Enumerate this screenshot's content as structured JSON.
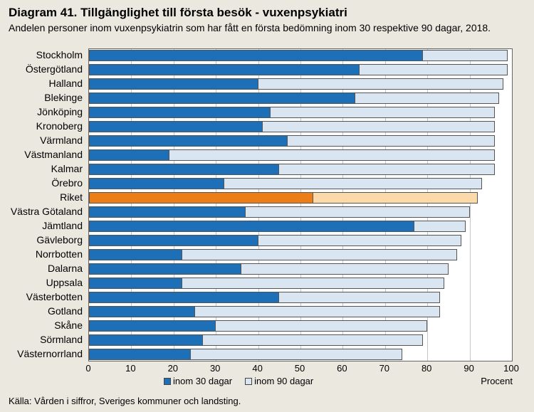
{
  "title": "Diagram 41. Tillgänglighet till första besök - vuxenpsykiatri",
  "subtitle": "Andelen personer inom vuxenpsykiatrin som har fått en första bedömning inom 30 respektive 90 dagar, 2018.",
  "source": "Källa: Vården i siffror, Sveriges kommuner och landsting.",
  "chart": {
    "type": "bar-horizontal-grouped-overlay",
    "background_color": "#ffffff",
    "page_background": "#ebe8df",
    "grid_color": "#c6c6c6",
    "border_color": "#666666",
    "xlim": [
      0,
      100
    ],
    "xtick_step": 10,
    "xaxis_title": "Procent",
    "bar_row_height": 16,
    "bar_row_gap": 4,
    "label_fontsize": 14,
    "tick_fontsize": 13,
    "legend": [
      {
        "label": "inom 30 dagar",
        "color": "#1d70b7"
      },
      {
        "label": "inom 90 dagar",
        "color": "#d9e6f2"
      }
    ],
    "series_colors": {
      "normal_30": "#1d70b7",
      "normal_90": "#d9e6f2",
      "highlight_30": "#ed7d16",
      "highlight_90": "#fbd9a9",
      "border": "#555555"
    },
    "categories": [
      {
        "name": "Stockholm",
        "v30": 79,
        "v90": 99,
        "highlight": false
      },
      {
        "name": "Östergötland",
        "v30": 64,
        "v90": 99,
        "highlight": false
      },
      {
        "name": "Halland",
        "v30": 40,
        "v90": 98,
        "highlight": false
      },
      {
        "name": "Blekinge",
        "v30": 63,
        "v90": 97,
        "highlight": false
      },
      {
        "name": "Jönköping",
        "v30": 43,
        "v90": 96,
        "highlight": false
      },
      {
        "name": "Kronoberg",
        "v30": 41,
        "v90": 96,
        "highlight": false
      },
      {
        "name": "Värmland",
        "v30": 47,
        "v90": 96,
        "highlight": false
      },
      {
        "name": "Västmanland",
        "v30": 19,
        "v90": 96,
        "highlight": false
      },
      {
        "name": "Kalmar",
        "v30": 45,
        "v90": 96,
        "highlight": false
      },
      {
        "name": "Örebro",
        "v30": 32,
        "v90": 93,
        "highlight": false
      },
      {
        "name": "Riket",
        "v30": 53,
        "v90": 92,
        "highlight": true
      },
      {
        "name": "Västra Götaland",
        "v30": 37,
        "v90": 90,
        "highlight": false
      },
      {
        "name": "Jämtland",
        "v30": 77,
        "v90": 89,
        "highlight": false
      },
      {
        "name": "Gävleborg",
        "v30": 40,
        "v90": 88,
        "highlight": false
      },
      {
        "name": "Norrbotten",
        "v30": 22,
        "v90": 87,
        "highlight": false
      },
      {
        "name": "Dalarna",
        "v30": 36,
        "v90": 85,
        "highlight": false
      },
      {
        "name": "Uppsala",
        "v30": 22,
        "v90": 84,
        "highlight": false
      },
      {
        "name": "Västerbotten",
        "v30": 45,
        "v90": 83,
        "highlight": false
      },
      {
        "name": "Gotland",
        "v30": 25,
        "v90": 83,
        "highlight": false
      },
      {
        "name": "Skåne",
        "v30": 30,
        "v90": 80,
        "highlight": false
      },
      {
        "name": "Sörmland",
        "v30": 27,
        "v90": 79,
        "highlight": false
      },
      {
        "name": "Västernorrland",
        "v30": 24,
        "v90": 74,
        "highlight": false
      }
    ]
  }
}
